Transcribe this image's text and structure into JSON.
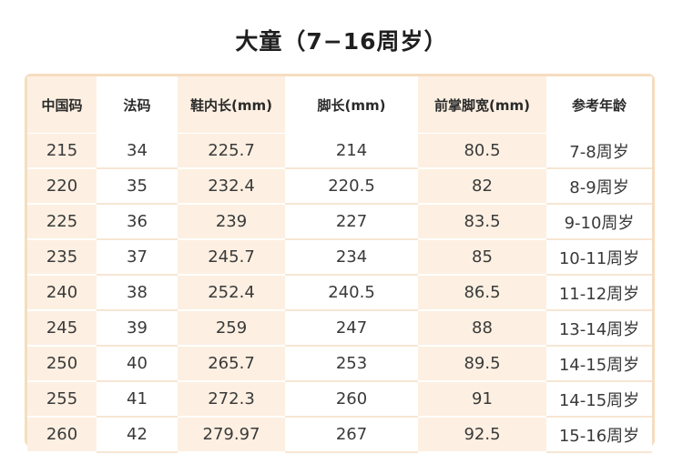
{
  "title": "大童（7−16周岁）",
  "table": {
    "headers": [
      "中国码",
      "法码",
      "鞋内长(mm)",
      "脚长(mm)",
      "前掌脚宽(mm)",
      "参考年龄"
    ],
    "rows": [
      [
        "215",
        "34",
        "225.7",
        "214",
        "80.5",
        "7-8周岁"
      ],
      [
        "220",
        "35",
        "232.4",
        "220.5",
        "82",
        "8-9周岁"
      ],
      [
        "225",
        "36",
        "239",
        "227",
        "83.5",
        "9-10周岁"
      ],
      [
        "235",
        "37",
        "245.7",
        "234",
        "85",
        "10-11周岁"
      ],
      [
        "240",
        "38",
        "252.4",
        "240.5",
        "86.5",
        "11-12周岁"
      ],
      [
        "245",
        "39",
        "259",
        "247",
        "88",
        "13-14周岁"
      ],
      [
        "250",
        "40",
        "265.7",
        "253",
        "89.5",
        "14-15周岁"
      ],
      [
        "255",
        "41",
        "272.3",
        "260",
        "91",
        "14-15周岁"
      ],
      [
        "260",
        "42",
        "279.97",
        "267",
        "92.5",
        "15-16周岁"
      ]
    ]
  },
  "colors": {
    "frame_border": "#f6ddc0",
    "shaded_column": "#fdf0e2",
    "text": "#3a3a3a"
  }
}
